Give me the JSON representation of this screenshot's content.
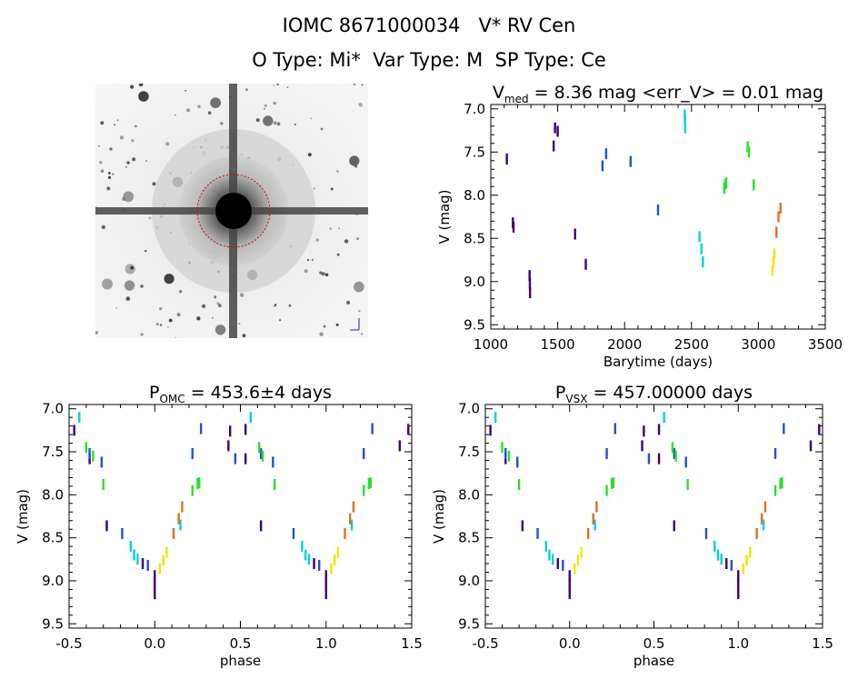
{
  "header": {
    "title": "IOMC 8671000034   V* RV Cen",
    "subtitle": "O Type: Mi*  Var Type: M  SP Type: Ce"
  },
  "image_panel": {
    "labels": [
      "",
      "",
      "",
      ""
    ]
  },
  "chart_data": [
    {
      "id": "lightcurve",
      "type": "scatter",
      "title_main": "V",
      "title_sub": "med",
      "title_rest": " = 8.36 mag <err_V> = 0.01 mag",
      "xlabel": "Barytime (days)",
      "ylabel": "V (mag)",
      "xlim": [
        1000,
        3500
      ],
      "ylim": [
        9.55,
        6.95
      ],
      "y_inverted": true,
      "xticks": [
        "1000",
        "1500",
        "2000",
        "2500",
        "3000",
        "3500"
      ],
      "yticks": [
        "7.0",
        "7.5",
        "8.0",
        "8.5",
        "9.0",
        "9.5"
      ],
      "series": [
        {
          "color": "#3c0078",
          "points": [
            [
              1120,
              7.58
            ],
            [
              1165,
              8.32
            ],
            [
              1170,
              8.37
            ],
            [
              1290,
              8.93
            ],
            [
              1292,
              9.02
            ],
            [
              1293,
              9.13
            ],
            [
              1470,
              7.43
            ],
            [
              1480,
              7.22
            ],
            [
              1500,
              7.26
            ],
            [
              1630,
              8.45
            ],
            [
              1710,
              8.8
            ]
          ]
        },
        {
          "color": "#1f50d8",
          "points": [
            [
              1835,
              7.66
            ],
            [
              1862,
              7.52
            ],
            [
              2045,
              7.61
            ],
            [
              2250,
              8.17
            ]
          ]
        },
        {
          "color": "#00d0e0",
          "points": [
            [
              2450,
              7.07
            ],
            [
              2452,
              7.13
            ],
            [
              2453,
              7.22
            ],
            [
              2560,
              8.48
            ],
            [
              2575,
              8.62
            ],
            [
              2585,
              8.77
            ]
          ]
        },
        {
          "color": "#28e028",
          "points": [
            [
              2745,
              7.92
            ],
            [
              2752,
              7.87
            ],
            [
              2760,
              7.86
            ],
            [
              2920,
              7.44
            ],
            [
              2930,
              7.5
            ],
            [
              2965,
              7.88
            ]
          ]
        },
        {
          "color": "#e8e800",
          "points": [
            [
              3105,
              8.87
            ],
            [
              3112,
              8.77
            ],
            [
              3120,
              8.68
            ]
          ]
        },
        {
          "color": "#e07020",
          "points": [
            [
              3135,
              8.43
            ],
            [
              3150,
              8.25
            ],
            [
              3165,
              8.15
            ]
          ]
        }
      ]
    },
    {
      "id": "phase-omc",
      "type": "scatter",
      "title_main": "P",
      "title_sub": "OMC",
      "title_rest": " = 453.6±4 days",
      "xlabel": "phase",
      "ylabel": "V (mag)",
      "xlim": [
        -0.5,
        1.5
      ],
      "ylim": [
        9.55,
        6.95
      ],
      "y_inverted": true,
      "xticks": [
        "-0.5",
        "0.0",
        "0.5",
        "1.0",
        "1.5"
      ],
      "yticks": [
        "7.0",
        "7.5",
        "8.0",
        "8.5",
        "9.0",
        "9.5"
      ],
      "series": [
        {
          "color": "#3c0078",
          "points": [
            [
              -0.47,
              7.25
            ],
            [
              -0.38,
              7.58
            ],
            [
              -0.28,
              8.36
            ],
            [
              -0.07,
              8.8
            ],
            [
              0.0,
              8.94
            ],
            [
              0.0,
              9.03
            ],
            [
              0.0,
              9.15
            ],
            [
              0.43,
              7.43
            ],
            [
              0.44,
              7.26
            ],
            [
              0.53,
              7.24
            ],
            [
              0.53,
              7.58
            ],
            [
              0.62,
              8.36
            ],
            [
              0.93,
              8.8
            ],
            [
              1.0,
              8.94
            ],
            [
              1.0,
              9.03
            ],
            [
              1.0,
              9.15
            ],
            [
              1.43,
              7.43
            ],
            [
              1.48,
              7.24
            ]
          ]
        },
        {
          "color": "#1f50d8",
          "points": [
            [
              -0.38,
              7.52
            ],
            [
              -0.31,
              7.62
            ],
            [
              -0.19,
              8.45
            ],
            [
              -0.04,
              8.82
            ],
            [
              0.22,
              7.52
            ],
            [
              0.27,
              7.23
            ],
            [
              0.47,
              7.58
            ],
            [
              0.62,
              7.52
            ],
            [
              0.69,
              7.62
            ],
            [
              0.81,
              8.45
            ],
            [
              0.96,
              8.82
            ],
            [
              1.22,
              7.52
            ],
            [
              1.27,
              7.23
            ]
          ]
        },
        {
          "color": "#00d0e0",
          "points": [
            [
              -0.44,
              7.1
            ],
            [
              -0.14,
              8.6
            ],
            [
              -0.12,
              8.7
            ],
            [
              -0.1,
              8.75
            ],
            [
              0.15,
              8.35
            ],
            [
              0.56,
              7.1
            ],
            [
              0.86,
              8.6
            ],
            [
              0.88,
              8.7
            ],
            [
              0.9,
              8.75
            ],
            [
              1.15,
              8.35
            ]
          ]
        },
        {
          "color": "#28e028",
          "points": [
            [
              -0.4,
              7.45
            ],
            [
              -0.36,
              7.55
            ],
            [
              -0.3,
              7.88
            ],
            [
              0.22,
              7.95
            ],
            [
              0.25,
              7.87
            ],
            [
              0.26,
              7.86
            ],
            [
              0.61,
              7.45
            ],
            [
              0.63,
              7.55
            ],
            [
              0.7,
              7.88
            ],
            [
              1.22,
              7.95
            ],
            [
              1.25,
              7.87
            ],
            [
              1.26,
              7.86
            ]
          ]
        },
        {
          "color": "#e8e800",
          "points": [
            [
              0.03,
              8.86
            ],
            [
              0.05,
              8.76
            ],
            [
              0.07,
              8.67
            ],
            [
              1.03,
              8.86
            ],
            [
              1.05,
              8.76
            ],
            [
              1.07,
              8.67
            ]
          ]
        },
        {
          "color": "#e07020",
          "points": [
            [
              0.11,
              8.45
            ],
            [
              0.14,
              8.28
            ],
            [
              0.16,
              8.14
            ],
            [
              1.11,
              8.45
            ],
            [
              1.14,
              8.28
            ],
            [
              1.16,
              8.14
            ]
          ]
        }
      ]
    },
    {
      "id": "phase-vsx",
      "type": "scatter",
      "title_main": "P",
      "title_sub": "VSX",
      "title_rest": " = 457.00000 days",
      "xlabel": "phase",
      "ylabel": "V (mag)",
      "xlim": [
        -0.5,
        1.5
      ],
      "ylim": [
        9.55,
        6.95
      ],
      "y_inverted": true,
      "xticks": [
        "-0.5",
        "0.0",
        "0.5",
        "1.0",
        "1.5"
      ],
      "yticks": [
        "7.0",
        "7.5",
        "8.0",
        "8.5",
        "9.0",
        "9.5"
      ],
      "series": [
        {
          "color": "#3c0078",
          "points": [
            [
              -0.47,
              7.25
            ],
            [
              -0.38,
              7.58
            ],
            [
              -0.28,
              8.36
            ],
            [
              -0.07,
              8.8
            ],
            [
              0.0,
              8.94
            ],
            [
              0.0,
              9.03
            ],
            [
              0.0,
              9.15
            ],
            [
              0.43,
              7.43
            ],
            [
              0.44,
              7.26
            ],
            [
              0.53,
              7.24
            ],
            [
              0.53,
              7.58
            ],
            [
              0.62,
              8.36
            ],
            [
              0.93,
              8.8
            ],
            [
              1.0,
              8.94
            ],
            [
              1.0,
              9.03
            ],
            [
              1.0,
              9.15
            ],
            [
              1.43,
              7.43
            ],
            [
              1.48,
              7.24
            ]
          ]
        },
        {
          "color": "#1f50d8",
          "points": [
            [
              -0.38,
              7.52
            ],
            [
              -0.31,
              7.62
            ],
            [
              -0.19,
              8.45
            ],
            [
              -0.04,
              8.82
            ],
            [
              0.22,
              7.52
            ],
            [
              0.27,
              7.23
            ],
            [
              0.47,
              7.58
            ],
            [
              0.62,
              7.52
            ],
            [
              0.69,
              7.62
            ],
            [
              0.81,
              8.45
            ],
            [
              0.96,
              8.82
            ],
            [
              1.22,
              7.52
            ],
            [
              1.27,
              7.23
            ]
          ]
        },
        {
          "color": "#00d0e0",
          "points": [
            [
              -0.44,
              7.1
            ],
            [
              -0.14,
              8.6
            ],
            [
              -0.12,
              8.7
            ],
            [
              -0.1,
              8.75
            ],
            [
              0.15,
              8.35
            ],
            [
              0.56,
              7.1
            ],
            [
              0.86,
              8.6
            ],
            [
              0.88,
              8.7
            ],
            [
              0.9,
              8.75
            ],
            [
              1.15,
              8.35
            ]
          ]
        },
        {
          "color": "#28e028",
          "points": [
            [
              -0.4,
              7.45
            ],
            [
              -0.36,
              7.55
            ],
            [
              -0.3,
              7.88
            ],
            [
              0.22,
              7.95
            ],
            [
              0.25,
              7.87
            ],
            [
              0.26,
              7.86
            ],
            [
              0.61,
              7.45
            ],
            [
              0.63,
              7.55
            ],
            [
              0.7,
              7.88
            ],
            [
              1.22,
              7.95
            ],
            [
              1.25,
              7.87
            ],
            [
              1.26,
              7.86
            ]
          ]
        },
        {
          "color": "#e8e800",
          "points": [
            [
              0.03,
              8.86
            ],
            [
              0.05,
              8.76
            ],
            [
              0.07,
              8.67
            ],
            [
              1.03,
              8.86
            ],
            [
              1.05,
              8.76
            ],
            [
              1.07,
              8.67
            ]
          ]
        },
        {
          "color": "#e07020",
          "points": [
            [
              0.11,
              8.45
            ],
            [
              0.14,
              8.28
            ],
            [
              0.16,
              8.14
            ],
            [
              1.11,
              8.45
            ],
            [
              1.14,
              8.28
            ],
            [
              1.16,
              8.14
            ]
          ]
        }
      ]
    }
  ]
}
